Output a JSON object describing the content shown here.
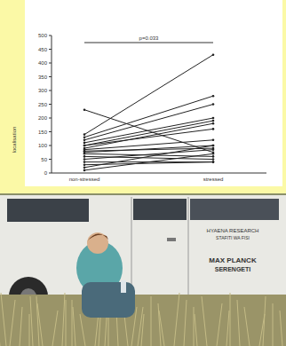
{
  "chart_data": {
    "type": "paired",
    "y_label": "localisation",
    "annotation": "p=0.033",
    "categories": [
      "non-stressed",
      "stressed"
    ],
    "color": "#222222",
    "marker": "circle",
    "ylim": [
      0,
      500
    ],
    "yticks": [
      0,
      50,
      100,
      150,
      200,
      250,
      300,
      350,
      400,
      450,
      500
    ],
    "series": [
      {
        "values": [
          230,
          75
        ]
      },
      {
        "values": [
          140,
          430
        ]
      },
      {
        "values": [
          130,
          280
        ]
      },
      {
        "values": [
          120,
          250
        ]
      },
      {
        "values": [
          110,
          200
        ]
      },
      {
        "values": [
          100,
          190
        ]
      },
      {
        "values": [
          90,
          180
        ]
      },
      {
        "values": [
          85,
          120
        ]
      },
      {
        "values": [
          80,
          90
        ]
      },
      {
        "values": [
          75,
          100
        ]
      },
      {
        "values": [
          70,
          60
        ]
      },
      {
        "values": [
          60,
          50
        ]
      },
      {
        "values": [
          50,
          85
        ]
      },
      {
        "values": [
          40,
          40
        ]
      },
      {
        "values": [
          30,
          40
        ]
      },
      {
        "values": [
          20,
          100
        ]
      },
      {
        "values": [
          10,
          70
        ]
      },
      {
        "values": [
          100,
          160
        ]
      }
    ]
  },
  "photo": {
    "texts": [
      "HYAENA RESEARCH",
      "STAFITI WA FISI",
      "MAX PLANCK",
      "SERENGETI"
    ]
  }
}
